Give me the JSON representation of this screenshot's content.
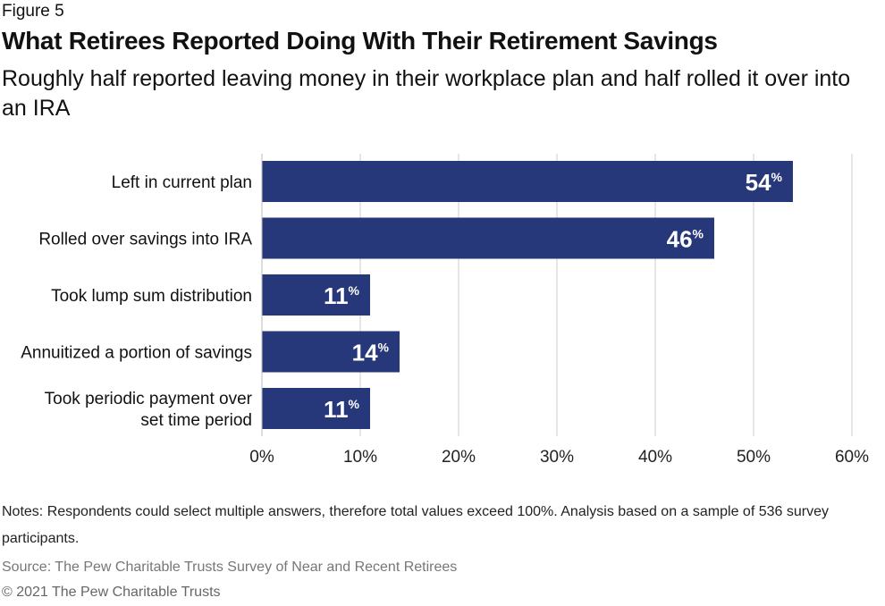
{
  "figure_label": "Figure 5",
  "title": "What Retirees Reported Doing With Their Retirement Savings",
  "subtitle": "Roughly half reported leaving money in their workplace plan and half rolled it over into an IRA",
  "notes": "Notes: Respondents could select multiple answers, therefore total values exceed 100%.  Analysis based on a sample of 536 survey participants.",
  "source": "Source: The Pew Charitable Trusts Survey of Near and Recent Retirees",
  "copyright": "© 2021 The Pew Charitable Trusts",
  "chart_data": {
    "type": "bar",
    "orientation": "horizontal",
    "categories": [
      "Left in current plan",
      "Rolled over savings into IRA",
      "Took lump sum distribution",
      "Annuitized a portion of savings",
      "Took periodic payment over set time period"
    ],
    "category_lines": [
      [
        "Left in current plan"
      ],
      [
        "Rolled over savings into IRA"
      ],
      [
        "Took lump sum distribution"
      ],
      [
        "Annuitized a portion of savings"
      ],
      [
        "Took periodic payment over",
        "set time period"
      ]
    ],
    "values": [
      54,
      46,
      11,
      14,
      11
    ],
    "data_labels": [
      "54",
      "46",
      "11",
      "14",
      "11"
    ],
    "data_label_suffix": "%",
    "xlim": [
      0,
      60
    ],
    "xticks": [
      "0%",
      "10%",
      "20%",
      "30%",
      "40%",
      "50%",
      "60%"
    ],
    "grid": true,
    "bar_color": "#27387a",
    "grid_color": "#cccccc"
  }
}
